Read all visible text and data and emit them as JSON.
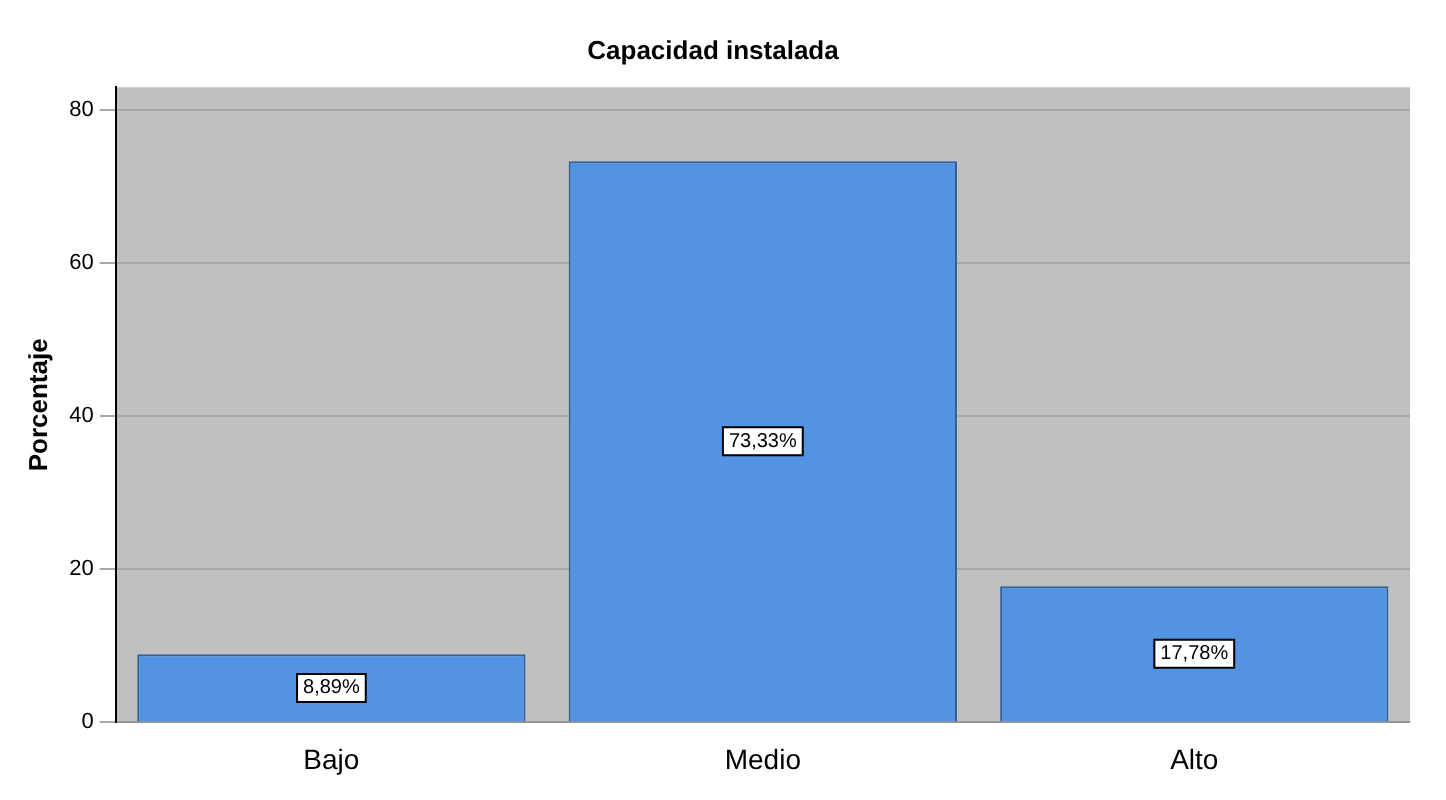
{
  "chart_data": {
    "type": "bar",
    "title": "Capacidad instalada",
    "ylabel": "Porcentaje",
    "categories": [
      "Bajo",
      "Medio",
      "Alto"
    ],
    "values": [
      8.89,
      73.33,
      17.78
    ],
    "value_labels": [
      "8,89%",
      "73,33%",
      "17,78%"
    ],
    "color": "#5294e2",
    "ylim": [
      0,
      83
    ],
    "yticks": [
      0,
      20,
      40,
      60,
      80
    ],
    "grid": "y",
    "legend": false
  }
}
